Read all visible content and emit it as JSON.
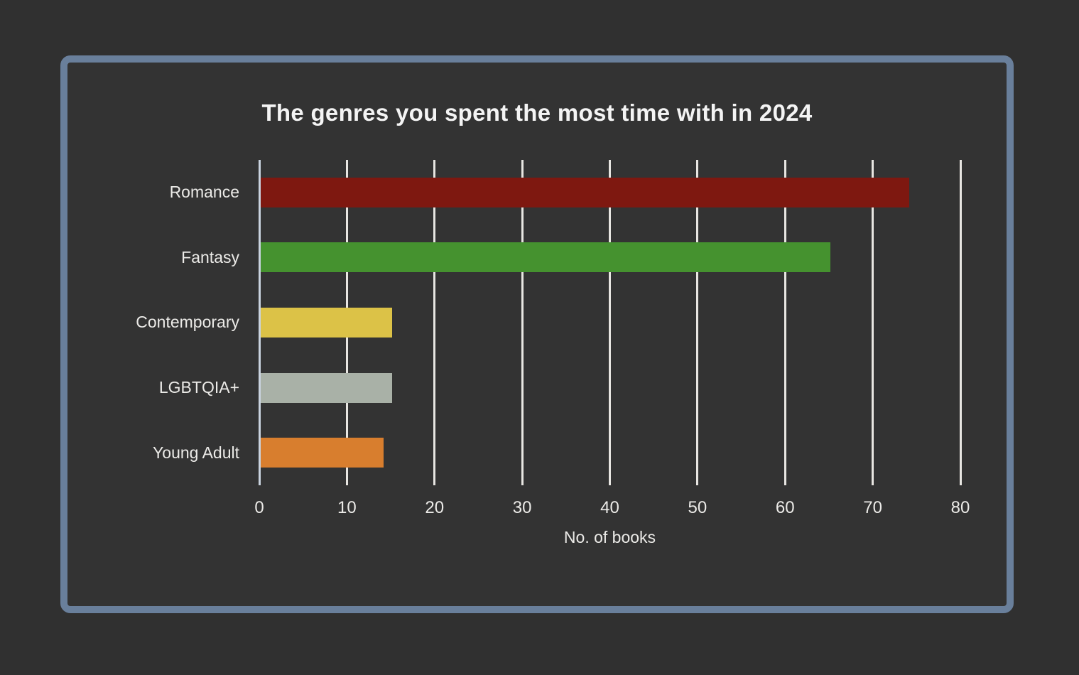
{
  "chart_data": {
    "type": "bar",
    "orientation": "horizontal",
    "title": "The genres you spent the most time with in 2024",
    "xlabel": "No. of books",
    "categories": [
      "Romance",
      "Fantasy",
      "Contemporary",
      "LGBTQIA+",
      "Young Adult"
    ],
    "values": [
      74,
      65,
      15,
      15,
      14
    ],
    "bar_colors": [
      "#7e1810",
      "#45922f",
      "#dcc247",
      "#a9b1a7",
      "#d87e2e"
    ],
    "xlim": [
      0,
      80
    ],
    "xticks": [
      0,
      10,
      20,
      30,
      40,
      50,
      60,
      70,
      80
    ],
    "grid": "vertical-gridlines-on",
    "legend": "none"
  },
  "styles": {
    "page_bg": "#303030",
    "card_bg": "#333333",
    "card_border": "#697f9b",
    "text_color": "#ecebe8",
    "gridline_color": "#e8e6e2",
    "axis_color": "#c9d3df"
  }
}
